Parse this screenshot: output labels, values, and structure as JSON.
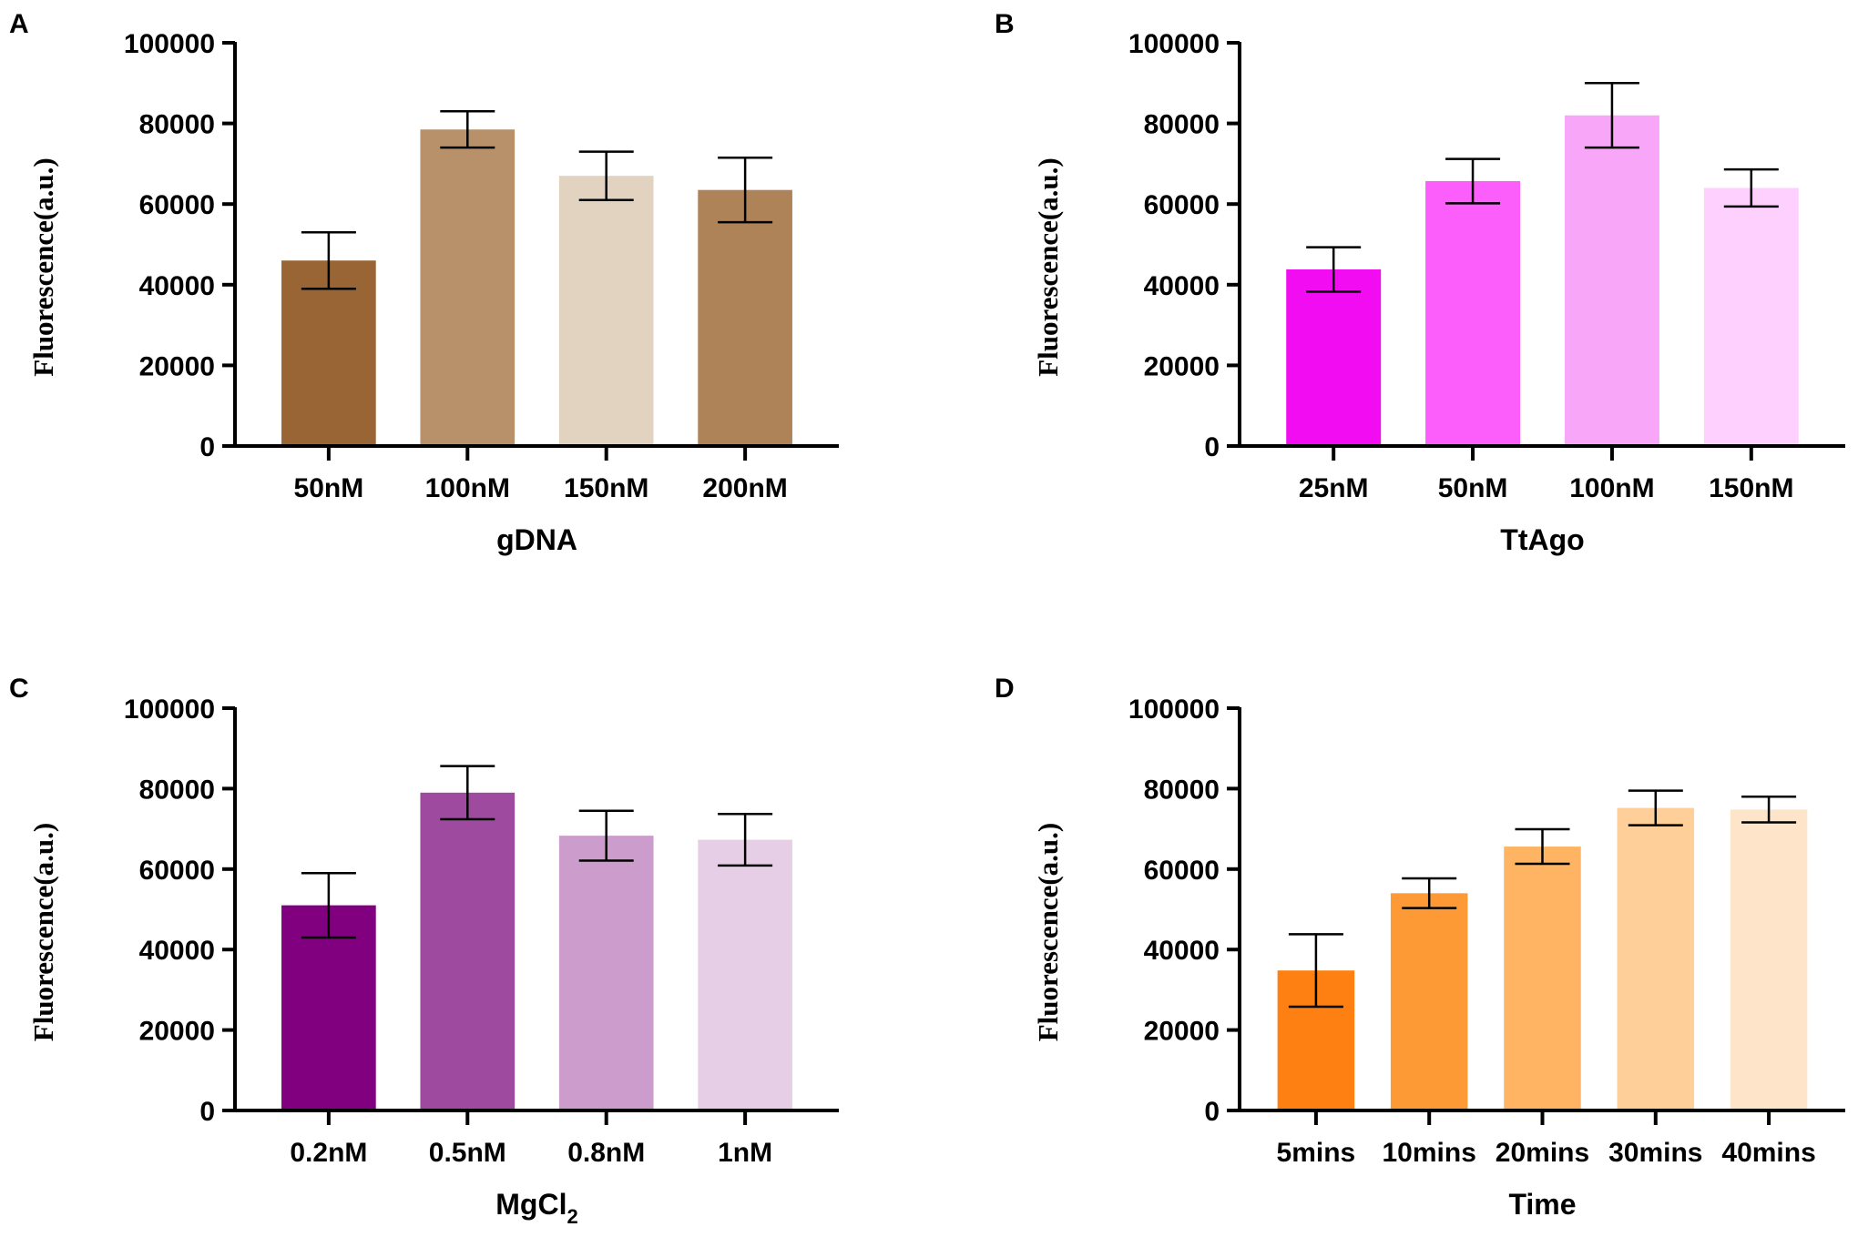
{
  "chart_data": [
    {
      "panel": "A",
      "type": "bar",
      "xlabel": "gDNA",
      "ylabel": "Fluorescence(a.u.)",
      "ylim": [
        0,
        100000
      ],
      "yticks": [
        0,
        20000,
        40000,
        60000,
        80000,
        100000
      ],
      "categories": [
        "50nM",
        "100nM",
        "150nM",
        "200nM"
      ],
      "values": [
        46000,
        78500,
        67000,
        63500
      ],
      "errors": [
        7000,
        4500,
        6000,
        8000
      ],
      "colors": [
        "#9a6535",
        "#b8916b",
        "#e2d2c0",
        "#af8358"
      ]
    },
    {
      "panel": "B",
      "type": "bar",
      "xlabel": "TtAgo",
      "ylabel": "Fluorescence(a.u.)",
      "ylim": [
        0,
        100000
      ],
      "yticks": [
        0,
        20000,
        40000,
        60000,
        80000,
        100000
      ],
      "categories": [
        "25nM",
        "50nM",
        "100nM",
        "150nM"
      ],
      "values": [
        43800,
        65700,
        82000,
        64000
      ],
      "errors": [
        5500,
        5500,
        8000,
        4600
      ],
      "colors": [
        "#f20cf2",
        "#fb5efb",
        "#f8a6f8",
        "#fdd0fd"
      ]
    },
    {
      "panel": "C",
      "type": "bar",
      "xlabel": "MgCl2",
      "ylabel": "Fluorescence(a.u.)",
      "ylim": [
        0,
        100000
      ],
      "yticks": [
        0,
        20000,
        40000,
        60000,
        80000,
        100000
      ],
      "categories": [
        "0.2nM",
        "0.5nM",
        "0.8nM",
        "1nM"
      ],
      "values": [
        51000,
        79000,
        68300,
        67300
      ],
      "errors": [
        8000,
        6600,
        6200,
        6400
      ],
      "colors": [
        "#800080",
        "#9e4a9e",
        "#cc9ccc",
        "#e6cfe6"
      ]
    },
    {
      "panel": "D",
      "type": "bar",
      "xlabel": "Time",
      "ylabel": "Fluorescence(a.u.)",
      "ylim": [
        0,
        100000
      ],
      "yticks": [
        0,
        20000,
        40000,
        60000,
        80000,
        100000
      ],
      "categories": [
        "5mins",
        "10mins",
        "20mins",
        "30mins",
        "40mins"
      ],
      "values": [
        34800,
        54000,
        65600,
        75200,
        74800
      ],
      "errors": [
        9000,
        3700,
        4300,
        4300,
        3200
      ],
      "colors": [
        "#fe8012",
        "#fe9a35",
        "#feb462",
        "#fecf98",
        "#fee5c9"
      ]
    }
  ]
}
